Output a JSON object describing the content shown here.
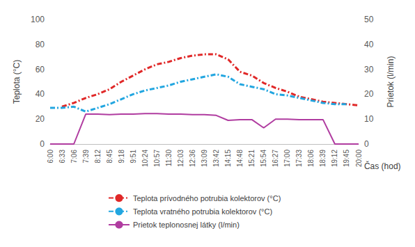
{
  "chart_data": {
    "type": "line",
    "x_label": "Čas (hod)",
    "y_label": "Teplota (°C)",
    "y2_label": "Prietok (l/min)",
    "categories": [
      "6:00",
      "6:33",
      "7:06",
      "7:39",
      "8:12",
      "8:45",
      "9:18",
      "9:51",
      "10:24",
      "10:57",
      "11:30",
      "12:03",
      "12:36",
      "13:09",
      "13:42",
      "14:15",
      "14:48",
      "15:21",
      "15:54",
      "16:27",
      "17:00",
      "17:33",
      "18:06",
      "18:39",
      "19:12",
      "19:45",
      "20:00"
    ],
    "ylim": [
      0,
      100
    ],
    "yticks": [
      0,
      20,
      40,
      60,
      80,
      100
    ],
    "y2lim": [
      0,
      50
    ],
    "y2ticks": [
      0,
      10,
      20,
      30,
      40,
      50
    ],
    "grid": false,
    "legend": "bottom",
    "series": [
      {
        "name": "Teplota prívodného potrubia kolektorov (°C)",
        "color": "#e02828",
        "line_style": "dashdot",
        "values": [
          null,
          30,
          33,
          37,
          40,
          44,
          50,
          55,
          60,
          64,
          66,
          69,
          71,
          72,
          72,
          68,
          58,
          55,
          49,
          45,
          42,
          38,
          36,
          34,
          33,
          32,
          31
        ]
      },
      {
        "name": "Teplota vratného potrubia kolektorov (°C)",
        "color": "#22a6e0",
        "line_style": "dashdot",
        "values": [
          29,
          29,
          30,
          26,
          29,
          32,
          36,
          40,
          43,
          45,
          47,
          50,
          52,
          54,
          56,
          54,
          48,
          46,
          44,
          40,
          39,
          37,
          35,
          33,
          32,
          32,
          null
        ]
      },
      {
        "name": "Prietok teplonosnej látky (l/min)",
        "color": "#b03ca0",
        "line_style": "solid",
        "axis": "y2",
        "values": [
          0,
          0,
          0,
          12,
          12,
          11.8,
          12,
          12,
          12.2,
          12.2,
          12,
          12,
          11.8,
          11.8,
          11.5,
          9.5,
          9.8,
          9.8,
          6.5,
          10,
          10,
          9.8,
          9.8,
          9.8,
          0,
          0,
          0
        ]
      }
    ]
  }
}
